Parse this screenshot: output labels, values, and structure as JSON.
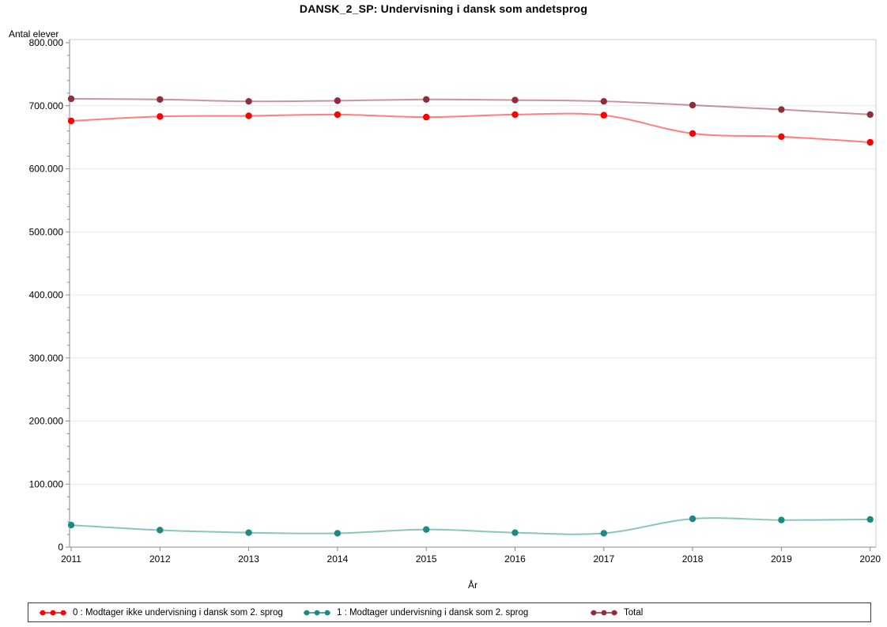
{
  "chart_data": {
    "type": "line",
    "title": "DANSK_2_SP: Undervisning i dansk som andetsprog",
    "xlabel": "År",
    "ylabel": "Antal elever",
    "categories": [
      2011,
      2012,
      2013,
      2014,
      2015,
      2016,
      2017,
      2018,
      2019,
      2020
    ],
    "x_tick_labels": [
      "2011",
      "2012",
      "2013",
      "2014",
      "2015",
      "2016",
      "2017",
      "2018",
      "2019",
      "2020"
    ],
    "ylim": [
      0,
      800000
    ],
    "ytick_interval": 100000,
    "ytick_labels": [
      "0",
      "100.000",
      "200.000",
      "300.000",
      "400.000",
      "500.000",
      "600.000",
      "700.000",
      "800.000"
    ],
    "minor_tick_interval": 20000,
    "grid": "horizontal-major",
    "line_style": "smooth",
    "legend_position": "bottom-framed",
    "series": [
      {
        "name": "0 : Modtager ikke undervisning i dansk som 2. sprog",
        "color": "#ff0000",
        "values": [
          676000,
          683000,
          684000,
          686000,
          682000,
          686000,
          685000,
          656000,
          651000,
          642000
        ]
      },
      {
        "name": "1 : Modtager undervisning i dansk som 2. sprog",
        "color": "#1b8a82",
        "values": [
          35000,
          27000,
          23000,
          22000,
          28000,
          23000,
          22000,
          45000,
          43000,
          44000
        ]
      },
      {
        "name": "Total",
        "color": "#8e2d3e",
        "values": [
          711000,
          710000,
          707000,
          708000,
          710000,
          709000,
          707000,
          701000,
          694000,
          686000
        ]
      }
    ],
    "style_colors": {
      "axis": "#8a8a8a",
      "frame": "#cccccc",
      "gridline": "#e9e9e9",
      "tick_label": "#000000",
      "legend_border": "#3c3c3c"
    }
  }
}
